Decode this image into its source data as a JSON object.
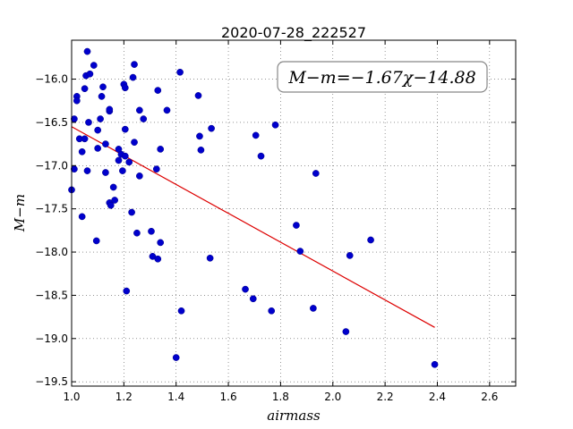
{
  "chart_data": {
    "type": "scatter",
    "title": "2020-07-28_222527",
    "xlabel": "airmass",
    "ylabel": "M−m",
    "xlim": [
      1.0,
      2.7
    ],
    "ylim": [
      -19.55,
      -15.55
    ],
    "y_inverted": true,
    "grid": true,
    "grid_style": "dotted",
    "xticks": [
      1.0,
      1.2,
      1.4,
      1.6,
      1.8,
      2.0,
      2.2,
      2.4,
      2.6
    ],
    "xtick_labels": [
      "1.0",
      "1.2",
      "1.4",
      "1.6",
      "1.8",
      "2.0",
      "2.2",
      "2.4",
      "2.6"
    ],
    "yticks": [
      -16.0,
      -16.5,
      -17.0,
      -17.5,
      -18.0,
      -18.5,
      -19.0,
      -19.5
    ],
    "ytick_labels": [
      "−16.0",
      "−16.5",
      "−17.0",
      "−17.5",
      "−18.0",
      "−18.5",
      "−19.0",
      "−19.5"
    ],
    "annotation": "M−m=−1.67χ−14.88",
    "annotation_placement": "top-right",
    "point_color": "#0000cc",
    "fit_color": "#dd0000",
    "fit": {
      "slope": -1.67,
      "intercept": -14.88,
      "x_range": [
        1.0,
        2.39
      ]
    },
    "points": [
      {
        "x": 1.0,
        "y": -17.28
      },
      {
        "x": 1.01,
        "y": -16.46
      },
      {
        "x": 1.01,
        "y": -17.04
      },
      {
        "x": 1.02,
        "y": -16.2
      },
      {
        "x": 1.02,
        "y": -16.25
      },
      {
        "x": 1.03,
        "y": -16.69
      },
      {
        "x": 1.04,
        "y": -17.59
      },
      {
        "x": 1.04,
        "y": -16.84
      },
      {
        "x": 1.05,
        "y": -16.11
      },
      {
        "x": 1.05,
        "y": -16.69
      },
      {
        "x": 1.055,
        "y": -15.96
      },
      {
        "x": 1.06,
        "y": -15.68
      },
      {
        "x": 1.06,
        "y": -17.06
      },
      {
        "x": 1.065,
        "y": -16.5
      },
      {
        "x": 1.07,
        "y": -15.94
      },
      {
        "x": 1.085,
        "y": -15.84
      },
      {
        "x": 1.095,
        "y": -17.87
      },
      {
        "x": 1.1,
        "y": -16.8
      },
      {
        "x": 1.1,
        "y": -16.59
      },
      {
        "x": 1.11,
        "y": -16.46
      },
      {
        "x": 1.115,
        "y": -16.2
      },
      {
        "x": 1.12,
        "y": -16.09
      },
      {
        "x": 1.13,
        "y": -16.75
      },
      {
        "x": 1.13,
        "y": -17.08
      },
      {
        "x": 1.145,
        "y": -16.37
      },
      {
        "x": 1.145,
        "y": -16.35
      },
      {
        "x": 1.145,
        "y": -17.43
      },
      {
        "x": 1.15,
        "y": -17.46
      },
      {
        "x": 1.16,
        "y": -17.25
      },
      {
        "x": 1.165,
        "y": -17.4
      },
      {
        "x": 1.18,
        "y": -16.81
      },
      {
        "x": 1.18,
        "y": -16.94
      },
      {
        "x": 1.19,
        "y": -16.87
      },
      {
        "x": 1.195,
        "y": -17.06
      },
      {
        "x": 1.2,
        "y": -16.06
      },
      {
        "x": 1.205,
        "y": -16.58
      },
      {
        "x": 1.205,
        "y": -16.1
      },
      {
        "x": 1.205,
        "y": -16.89
      },
      {
        "x": 1.21,
        "y": -18.45
      },
      {
        "x": 1.22,
        "y": -16.96
      },
      {
        "x": 1.23,
        "y": -17.54
      },
      {
        "x": 1.235,
        "y": -15.98
      },
      {
        "x": 1.24,
        "y": -16.73
      },
      {
        "x": 1.24,
        "y": -15.83
      },
      {
        "x": 1.25,
        "y": -17.78
      },
      {
        "x": 1.26,
        "y": -16.36
      },
      {
        "x": 1.26,
        "y": -17.12
      },
      {
        "x": 1.275,
        "y": -16.46
      },
      {
        "x": 1.305,
        "y": -17.76
      },
      {
        "x": 1.31,
        "y": -18.05
      },
      {
        "x": 1.325,
        "y": -17.04
      },
      {
        "x": 1.33,
        "y": -16.13
      },
      {
        "x": 1.33,
        "y": -18.08
      },
      {
        "x": 1.34,
        "y": -17.89
      },
      {
        "x": 1.34,
        "y": -16.81
      },
      {
        "x": 1.365,
        "y": -16.36
      },
      {
        "x": 1.4,
        "y": -19.22
      },
      {
        "x": 1.415,
        "y": -15.92
      },
      {
        "x": 1.42,
        "y": -18.68
      },
      {
        "x": 1.485,
        "y": -16.19
      },
      {
        "x": 1.49,
        "y": -16.66
      },
      {
        "x": 1.495,
        "y": -16.82
      },
      {
        "x": 1.53,
        "y": -18.07
      },
      {
        "x": 1.535,
        "y": -16.57
      },
      {
        "x": 1.665,
        "y": -18.43
      },
      {
        "x": 1.695,
        "y": -18.54
      },
      {
        "x": 1.705,
        "y": -16.65
      },
      {
        "x": 1.725,
        "y": -16.89
      },
      {
        "x": 1.765,
        "y": -18.68
      },
      {
        "x": 1.78,
        "y": -16.53
      },
      {
        "x": 1.86,
        "y": -17.69
      },
      {
        "x": 1.875,
        "y": -17.99
      },
      {
        "x": 1.925,
        "y": -18.65
      },
      {
        "x": 1.935,
        "y": -17.09
      },
      {
        "x": 2.05,
        "y": -18.92
      },
      {
        "x": 2.065,
        "y": -18.04
      },
      {
        "x": 2.145,
        "y": -17.86
      },
      {
        "x": 2.39,
        "y": -19.3
      }
    ]
  }
}
